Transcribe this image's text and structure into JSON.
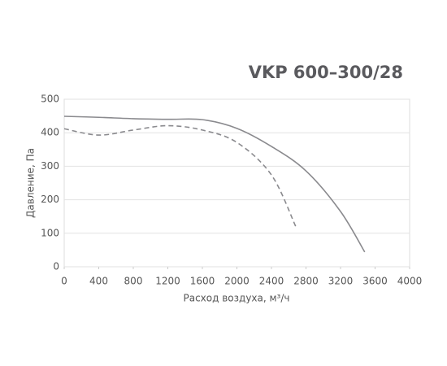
{
  "chart_data": {
    "type": "line",
    "title": "VKP 600–300/28",
    "x_label": "Расход воздуха, м³/ч",
    "y_label": "Давление, Па",
    "series": [
      {
        "color": "#8a8a8e",
        "style": "solid",
        "x": [
          0,
          400,
          800,
          1200,
          1600,
          2000,
          2400,
          2800,
          3200,
          3480
        ],
        "values": [
          449,
          446,
          442,
          440,
          439,
          413,
          359,
          286,
          165,
          44
        ]
      },
      {
        "color": "#8a8a8e",
        "style": "dashed",
        "x": [
          0,
          400,
          800,
          1200,
          1600,
          2000,
          2400,
          2680
        ],
        "values": [
          412,
          393,
          408,
          421,
          408,
          371,
          274,
          121
        ]
      }
    ],
    "xlim": [
      0,
      4000
    ],
    "xticks": [
      0,
      400,
      800,
      1200,
      1600,
      2000,
      2400,
      2800,
      3200,
      3600,
      4000
    ],
    "ylim": [
      0,
      500
    ],
    "yticks": [
      0,
      100,
      200,
      300,
      400,
      500
    ],
    "grid": true
  }
}
